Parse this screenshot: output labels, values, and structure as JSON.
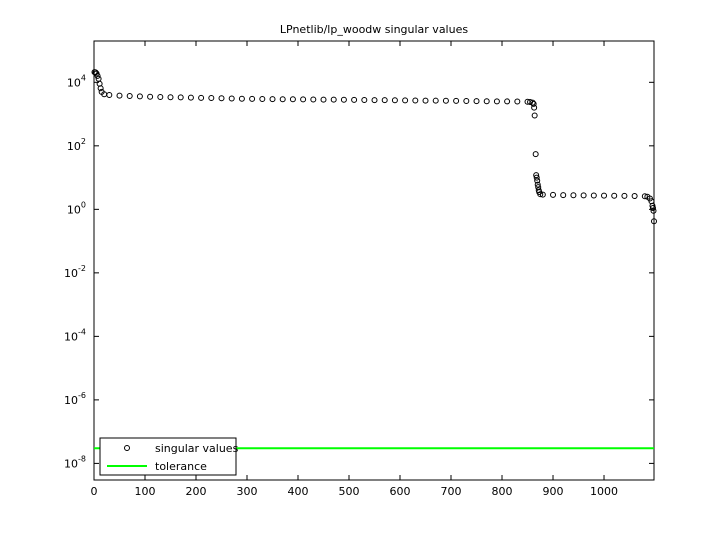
{
  "chart_data": {
    "type": "scatter",
    "title": "LPnetlib/lp_woodw singular values",
    "yscale": "log",
    "xlim": [
      0,
      1098
    ],
    "ylim": [
      3e-09,
      200000.0
    ],
    "xticks": [
      0,
      100,
      200,
      300,
      400,
      500,
      600,
      700,
      800,
      900,
      1000
    ],
    "yticks": [
      {
        "value": 1e-08,
        "label": "10^-8"
      },
      {
        "value": 1e-06,
        "label": "10^-6"
      },
      {
        "value": 0.0001,
        "label": "10^-4"
      },
      {
        "value": 0.01,
        "label": "10^-2"
      },
      {
        "value": 1,
        "label": "10^0"
      },
      {
        "value": 100,
        "label": "10^2"
      },
      {
        "value": 10000,
        "label": "10^4"
      }
    ],
    "legend": "lower left",
    "series": [
      {
        "name": "singular values",
        "color": "#000000",
        "marker": "circle",
        "x": [
          1,
          3,
          5,
          7,
          9,
          11,
          13,
          15,
          20,
          30,
          50,
          70,
          90,
          110,
          130,
          150,
          170,
          190,
          210,
          230,
          250,
          270,
          290,
          310,
          330,
          350,
          370,
          390,
          410,
          430,
          450,
          470,
          490,
          510,
          530,
          550,
          570,
          590,
          610,
          630,
          650,
          670,
          690,
          710,
          730,
          750,
          770,
          790,
          810,
          830,
          850,
          855,
          860,
          862,
          863,
          864,
          866,
          867,
          868,
          869,
          870,
          871,
          872,
          873,
          875,
          880,
          900,
          920,
          940,
          960,
          980,
          1000,
          1020,
          1040,
          1060,
          1080,
          1085,
          1090,
          1093,
          1095,
          1096,
          1097,
          1098
        ],
        "values": [
          21000,
          20500,
          19000,
          16000,
          13000,
          9000,
          6500,
          5000,
          4200,
          4000,
          3800,
          3700,
          3600,
          3500,
          3450,
          3400,
          3350,
          3300,
          3250,
          3200,
          3150,
          3100,
          3050,
          3000,
          2980,
          2960,
          2940,
          2920,
          2900,
          2880,
          2860,
          2840,
          2820,
          2800,
          2780,
          2760,
          2740,
          2720,
          2700,
          2680,
          2660,
          2640,
          2620,
          2600,
          2580,
          2560,
          2540,
          2520,
          2500,
          2480,
          2450,
          2400,
          2300,
          2100,
          1600,
          900,
          55,
          12,
          10,
          8,
          6,
          5,
          4,
          3.5,
          3,
          2.9,
          2.85,
          2.8,
          2.78,
          2.75,
          2.72,
          2.7,
          2.68,
          2.65,
          2.62,
          2.58,
          2.5,
          2.2,
          1.8,
          1.3,
          1.1,
          0.9,
          0.42
        ]
      },
      {
        "name": "tolerance",
        "color": "#00ff00",
        "marker": "line",
        "x": [
          0,
          1098
        ],
        "values": [
          3e-08,
          3e-08
        ]
      }
    ]
  }
}
